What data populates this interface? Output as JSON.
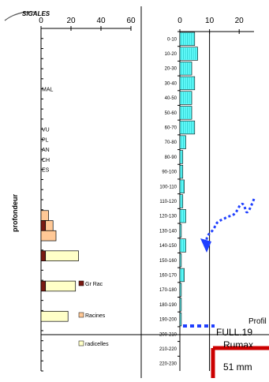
{
  "logo_text": "SIGALES",
  "chart_data": [
    {
      "type": "bar",
      "orientation": "horizontal",
      "stacked": true,
      "ylabel": "profondeur",
      "xlim": [
        0,
        60
      ],
      "x_ticks": [
        "0",
        "20",
        "40",
        "60"
      ],
      "marks": [
        "MAL",
        "VU",
        "PL",
        "AN",
        "CH",
        "ES"
      ],
      "series": [
        {
          "name": "Gr Rac",
          "color": "#7a1a12"
        },
        {
          "name": "Racines",
          "color": "#ffc896"
        },
        {
          "name": "radicelles",
          "color": "#ffffc8"
        }
      ],
      "bars": [
        {
          "row": 18,
          "values": [
            0,
            5,
            0
          ]
        },
        {
          "row": 19,
          "values": [
            3,
            5,
            0
          ]
        },
        {
          "row": 20,
          "values": [
            0,
            10,
            0
          ]
        },
        {
          "row": 22,
          "values": [
            3,
            0,
            22
          ]
        },
        {
          "row": 25,
          "values": [
            3,
            0,
            20
          ]
        },
        {
          "row": 28,
          "values": [
            0,
            0,
            18
          ]
        }
      ],
      "rows": 34
    },
    {
      "type": "bar",
      "orientation": "horizontal",
      "xlim": [
        0,
        25
      ],
      "x_ticks": [
        "0",
        "10",
        "20"
      ],
      "categories": [
        "0-10",
        "10-20",
        "20-30",
        "30-40",
        "40-50",
        "50-60",
        "60-70",
        "70-80",
        "80-90",
        "90-100",
        "100-110",
        "110-120",
        "120-130",
        "130-140",
        "140-150",
        "150-160",
        "160-170",
        "170-180",
        "180-190",
        "190-200",
        "200-210",
        "210-220",
        "220-230"
      ],
      "values": [
        5,
        6,
        4,
        5,
        4,
        4,
        5,
        2,
        1,
        1,
        1.5,
        1,
        2,
        0.5,
        2,
        0.5,
        1.5,
        0.5,
        0.5,
        0.5,
        0,
        0,
        0
      ],
      "bar_color": "#66ffff",
      "reference_x": 10
    }
  ],
  "right_panel": {
    "line1": "Profil",
    "line2": "FULL.19",
    "line3": "Rumax",
    "line4": "51 mm"
  },
  "colors": {
    "annotation_blue": "#1f3fff",
    "frame_red": "#cc0000"
  }
}
